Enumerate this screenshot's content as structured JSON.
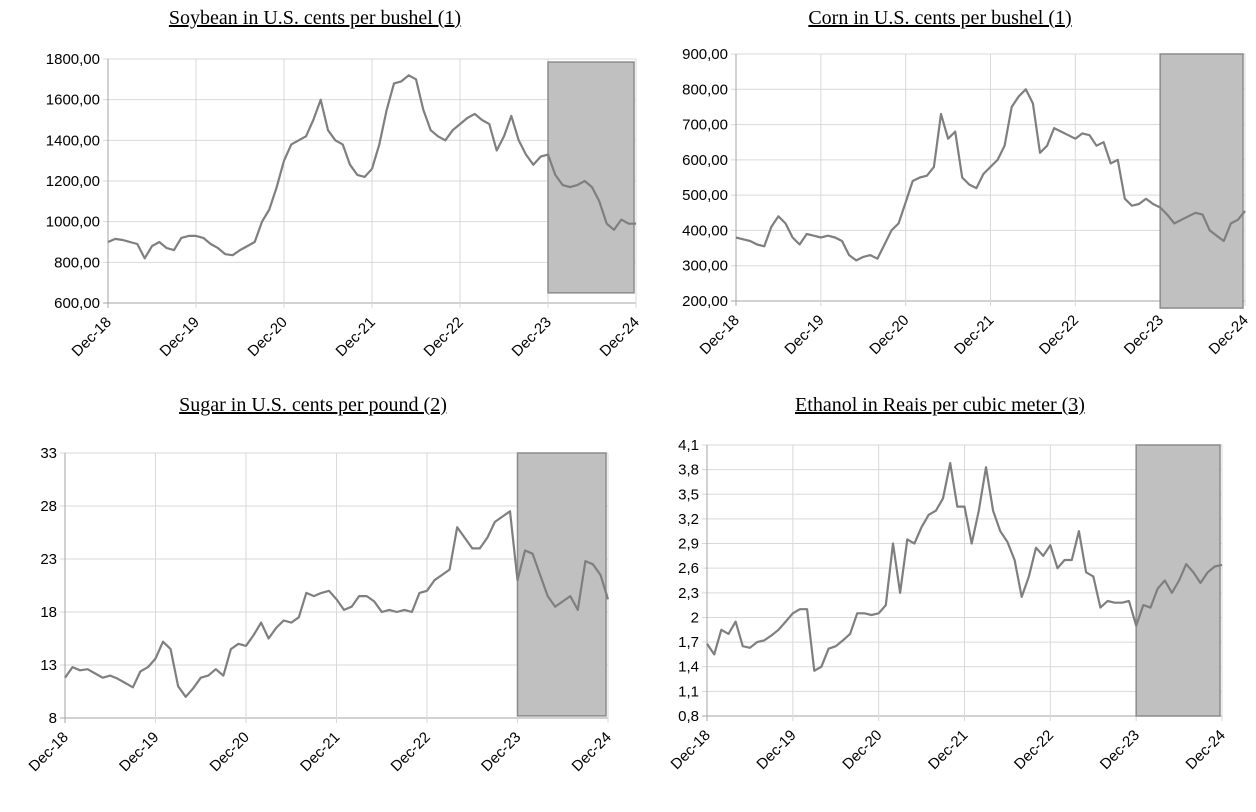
{
  "dates": [
    "2018-12",
    "2019-01",
    "2019-02",
    "2019-03",
    "2019-04",
    "2019-05",
    "2019-06",
    "2019-07",
    "2019-08",
    "2019-09",
    "2019-10",
    "2019-11",
    "2019-12",
    "2020-01",
    "2020-02",
    "2020-03",
    "2020-04",
    "2020-05",
    "2020-06",
    "2020-07",
    "2020-08",
    "2020-09",
    "2020-10",
    "2020-11",
    "2020-12",
    "2021-01",
    "2021-02",
    "2021-03",
    "2021-04",
    "2021-05",
    "2021-06",
    "2021-07",
    "2021-08",
    "2021-09",
    "2021-10",
    "2021-11",
    "2021-12",
    "2022-01",
    "2022-02",
    "2022-03",
    "2022-04",
    "2022-05",
    "2022-06",
    "2022-07",
    "2022-08",
    "2022-09",
    "2022-10",
    "2022-11",
    "2022-12",
    "2023-01",
    "2023-02",
    "2023-03",
    "2023-04",
    "2023-05",
    "2023-06",
    "2023-07",
    "2023-08",
    "2023-09",
    "2023-10",
    "2023-11",
    "2023-12",
    "2024-01",
    "2024-02",
    "2024-03",
    "2024-04",
    "2024-05",
    "2024-06",
    "2024-07",
    "2024-08",
    "2024-09",
    "2024-10",
    "2024-11",
    "2024-12"
  ],
  "chart_data": [
    {
      "type": "line",
      "title": "Soybean in U.S. cents per bushel (1)",
      "xlabel": "",
      "ylabel": "",
      "ylim": [
        600,
        1800
      ],
      "yticks": [
        600,
        800,
        1000,
        1200,
        1400,
        1600,
        1800
      ],
      "ytick_labels": [
        "600,00",
        "800,00",
        "1000,00",
        "1200,00",
        "1400,00",
        "1600,00",
        "1800,00"
      ],
      "xticks": [
        "2018-12",
        "2019-12",
        "2020-12",
        "2021-12",
        "2022-12",
        "2023-12",
        "2024-12"
      ],
      "xtick_labels": [
        "Dec-18",
        "Dec-19",
        "Dec-20",
        "Dec-21",
        "Dec-22",
        "Dec-23",
        "Dec-24"
      ],
      "grid": true,
      "highlight": {
        "from": "2023-12",
        "to": "2024-12",
        "y_from": 650,
        "y_to": 1785,
        "color": "#c0c0c0"
      },
      "series_color": "#7f7f7f",
      "values": [
        900,
        915,
        910,
        900,
        890,
        820,
        880,
        900,
        870,
        860,
        920,
        930,
        930,
        920,
        890,
        870,
        840,
        835,
        860,
        880,
        900,
        1000,
        1060,
        1170,
        1300,
        1380,
        1400,
        1420,
        1500,
        1600,
        1450,
        1400,
        1380,
        1280,
        1230,
        1220,
        1260,
        1380,
        1550,
        1680,
        1690,
        1720,
        1700,
        1550,
        1450,
        1420,
        1400,
        1450,
        1480,
        1510,
        1530,
        1500,
        1480,
        1350,
        1420,
        1520,
        1400,
        1330,
        1280,
        1320,
        1330,
        1230,
        1180,
        1170,
        1180,
        1200,
        1170,
        1100,
        990,
        960,
        1010,
        990,
        990
      ]
    },
    {
      "type": "line",
      "title": "Corn in U.S. cents per bushel (1)",
      "xlabel": "",
      "ylabel": "",
      "ylim": [
        200,
        900
      ],
      "yticks": [
        200,
        300,
        400,
        500,
        600,
        700,
        800,
        900
      ],
      "ytick_labels": [
        "200,00",
        "300,00",
        "400,00",
        "500,00",
        "600,00",
        "700,00",
        "800,00",
        "900,00"
      ],
      "xticks": [
        "2018-12",
        "2019-12",
        "2020-12",
        "2021-12",
        "2022-12",
        "2023-12",
        "2024-12"
      ],
      "xtick_labels": [
        "Dec-18",
        "Dec-19",
        "Dec-20",
        "Dec-21",
        "Dec-22",
        "Dec-23",
        "Dec-24"
      ],
      "grid": true,
      "highlight": {
        "from": "2023-12",
        "to": "2024-12",
        "y_from": 180,
        "y_to": 900,
        "color": "#c0c0c0"
      },
      "series_color": "#7f7f7f",
      "values": [
        380,
        375,
        370,
        360,
        355,
        410,
        440,
        420,
        380,
        360,
        390,
        385,
        380,
        385,
        380,
        370,
        330,
        315,
        325,
        330,
        320,
        360,
        400,
        420,
        480,
        540,
        550,
        555,
        580,
        730,
        660,
        680,
        550,
        530,
        520,
        560,
        580,
        600,
        640,
        750,
        780,
        800,
        760,
        620,
        640,
        690,
        680,
        670,
        660,
        675,
        670,
        640,
        650,
        590,
        600,
        490,
        470,
        475,
        490,
        475,
        465,
        445,
        420,
        430,
        440,
        450,
        445,
        400,
        385,
        370,
        420,
        430,
        455
      ]
    },
    {
      "type": "line",
      "title": "Sugar in U.S. cents per pound (2)",
      "xlabel": "",
      "ylabel": "",
      "ylim": [
        8,
        33
      ],
      "yticks": [
        8,
        13,
        18,
        23,
        28,
        33
      ],
      "ytick_labels": [
        "8",
        "13",
        "18",
        "23",
        "28",
        "33"
      ],
      "xticks": [
        "2018-12",
        "2019-12",
        "2020-12",
        "2021-12",
        "2022-12",
        "2023-12",
        "2024-12"
      ],
      "xtick_labels": [
        "Dec-18",
        "Dec-19",
        "Dec-20",
        "Dec-21",
        "Dec-22",
        "Dec-23",
        "Dec-24"
      ],
      "grid": true,
      "highlight": {
        "from": "2023-12",
        "to": "2024-12",
        "y_from": 8.2,
        "y_to": 33,
        "color": "#c0c0c0"
      },
      "series_color": "#7f7f7f",
      "values": [
        11.8,
        12.8,
        12.5,
        12.6,
        12.2,
        11.8,
        12.0,
        11.7,
        11.3,
        10.9,
        12.4,
        12.8,
        13.6,
        15.2,
        14.5,
        11.0,
        10.0,
        10.8,
        11.8,
        12.0,
        12.6,
        12.0,
        14.5,
        15.0,
        14.8,
        15.8,
        17.0,
        15.5,
        16.5,
        17.2,
        17.0,
        17.5,
        19.8,
        19.5,
        19.8,
        20.0,
        19.2,
        18.2,
        18.5,
        19.5,
        19.5,
        19.0,
        18.0,
        18.2,
        18.0,
        18.2,
        18.0,
        19.8,
        20.0,
        21.0,
        21.5,
        22.0,
        26.0,
        25.0,
        24.0,
        24.0,
        25.0,
        26.5,
        27.0,
        27.5,
        21.0,
        23.8,
        23.5,
        21.5,
        19.5,
        18.5,
        19.0,
        19.5,
        18.2,
        22.8,
        22.5,
        21.5,
        19.2
      ]
    },
    {
      "type": "line",
      "title": "Ethanol in Reais per cubic meter (3)",
      "xlabel": "",
      "ylabel": "",
      "ylim": [
        0.8,
        4.1
      ],
      "yticks": [
        0.8,
        1.1,
        1.4,
        1.7,
        2.0,
        2.3,
        2.6,
        2.9,
        3.2,
        3.5,
        3.8,
        4.1
      ],
      "ytick_labels": [
        "0,8",
        "1,1",
        "1,4",
        "1,7",
        "2",
        "2,3",
        "2,6",
        "2,9",
        "3,2",
        "3,5",
        "3,8",
        "4,1"
      ],
      "xticks": [
        "2018-12",
        "2019-12",
        "2020-12",
        "2021-12",
        "2022-12",
        "2023-12",
        "2024-12"
      ],
      "xtick_labels": [
        "Dec-18",
        "Dec-19",
        "Dec-20",
        "Dec-21",
        "Dec-22",
        "Dec-23",
        "Dec-24"
      ],
      "grid": true,
      "highlight": {
        "from": "2023-12",
        "to": "2024-12",
        "y_from": 0.8,
        "y_to": 4.1,
        "color": "#c0c0c0"
      },
      "series_color": "#7f7f7f",
      "values": [
        1.68,
        1.55,
        1.85,
        1.8,
        1.95,
        1.65,
        1.63,
        1.7,
        1.72,
        1.78,
        1.85,
        1.95,
        2.05,
        2.1,
        2.1,
        1.35,
        1.4,
        1.62,
        1.65,
        1.72,
        1.8,
        2.05,
        2.05,
        2.03,
        2.05,
        2.15,
        2.9,
        2.3,
        2.95,
        2.9,
        3.1,
        3.25,
        3.3,
        3.45,
        3.88,
        3.35,
        3.35,
        2.9,
        3.3,
        3.83,
        3.3,
        3.05,
        2.92,
        2.7,
        2.25,
        2.5,
        2.85,
        2.75,
        2.88,
        2.6,
        2.7,
        2.7,
        3.05,
        2.55,
        2.5,
        2.12,
        2.2,
        2.18,
        2.18,
        2.2,
        1.9,
        2.15,
        2.12,
        2.35,
        2.45,
        2.3,
        2.45,
        2.65,
        2.55,
        2.42,
        2.55,
        2.62,
        2.64
      ]
    }
  ]
}
